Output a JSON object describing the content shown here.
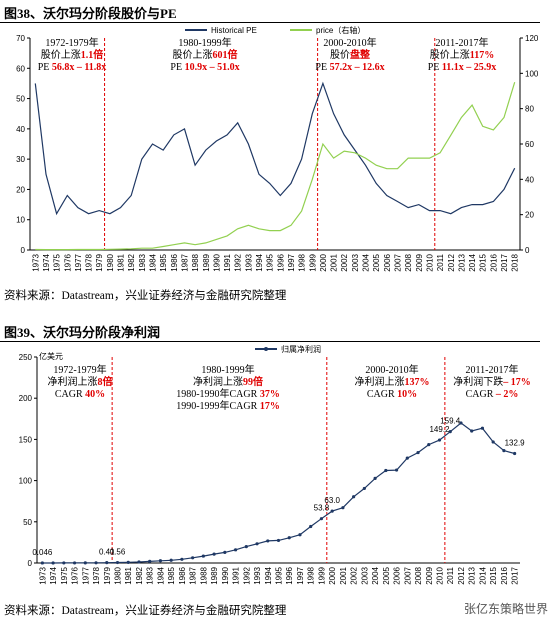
{
  "chart_data": [
    {
      "type": "line",
      "title": "图38、沃尔玛分阶段股价与PE",
      "categories": [
        "1973",
        "1974",
        "1975",
        "1976",
        "1977",
        "1978",
        "1979",
        "1980",
        "1981",
        "1982",
        "1983",
        "1984",
        "1985",
        "1986",
        "1987",
        "1988",
        "1989",
        "1990",
        "1991",
        "1992",
        "1993",
        "1994",
        "1995",
        "1996",
        "1997",
        "1998",
        "1999",
        "2000",
        "2001",
        "2002",
        "2003",
        "2004",
        "2005",
        "2006",
        "2007",
        "2008",
        "2009",
        "2010",
        "2011",
        "2012",
        "2013",
        "2014",
        "2015",
        "2016",
        "2017",
        "2018"
      ],
      "series": [
        {
          "name": "Historical PE",
          "color": "#1f3864",
          "values": [
            55,
            25,
            12,
            18,
            14,
            12,
            13,
            12,
            14,
            18,
            30,
            35,
            33,
            38,
            40,
            28,
            33,
            36,
            38,
            42,
            35,
            25,
            22,
            18,
            22,
            30,
            45,
            55,
            45,
            38,
            33,
            28,
            22,
            18,
            16,
            14,
            15,
            13,
            13,
            12,
            14,
            15,
            15,
            16,
            20,
            27
          ]
        },
        {
          "name": "price（右轴）",
          "color": "#92d050",
          "axis": "y2",
          "values": [
            0.3,
            0.2,
            0.2,
            0.2,
            0.3,
            0.3,
            0.3,
            0.4,
            0.5,
            0.7,
            1,
            1,
            2,
            3,
            4,
            3,
            4,
            6,
            8,
            12,
            14,
            12,
            11,
            11,
            14,
            22,
            40,
            60,
            52,
            56,
            55,
            52,
            48,
            46,
            46,
            52,
            52,
            52,
            55,
            65,
            75,
            82,
            70,
            68,
            75,
            95
          ]
        }
      ],
      "ylim": [
        0,
        70
      ],
      "yticks": [
        0,
        10,
        20,
        30,
        40,
        50,
        60,
        70
      ],
      "y2lim": [
        0,
        120
      ],
      "y2ticks": [
        0,
        20,
        40,
        60,
        80,
        100,
        120
      ],
      "period_lines": [
        "1980",
        "2000",
        "2011"
      ],
      "annotations": [
        [
          [
            "1972-1979年"
          ],
          [
            "股价上涨",
            "1.1倍"
          ],
          [
            "PE ",
            "56.8x – 11.8x"
          ]
        ],
        [
          [
            "1980-1999年"
          ],
          [
            "股价上涨",
            "601倍"
          ],
          [
            "PE ",
            "10.9x – 51.0x"
          ]
        ],
        [
          [
            "2000-2010年"
          ],
          [
            "股价",
            "盘整"
          ],
          [
            "PE ",
            "57.2x – 12.6x"
          ]
        ],
        [
          [
            "2011-2017年"
          ],
          [
            "股价上涨",
            "117%"
          ],
          [
            "PE ",
            "11.1x – 25.9x"
          ]
        ]
      ]
    },
    {
      "type": "line",
      "title": "图39、沃尔玛分阶段净利润",
      "y_label": "亿美元",
      "categories": [
        "1973",
        "1974",
        "1975",
        "1976",
        "1977",
        "1978",
        "1979",
        "1980",
        "1981",
        "1982",
        "1983",
        "1984",
        "1985",
        "1986",
        "1987",
        "1988",
        "1989",
        "1990",
        "1991",
        "1992",
        "1993",
        "1994",
        "1995",
        "1996",
        "1997",
        "1998",
        "1999",
        "2000",
        "2001",
        "2002",
        "2003",
        "2004",
        "2005",
        "2006",
        "2007",
        "2008",
        "2009",
        "2010",
        "2011",
        "2012",
        "2013",
        "2014",
        "2015",
        "2016",
        "2017"
      ],
      "series": [
        {
          "name": "归属净利润",
          "color": "#1f3864",
          "marker": true,
          "values": [
            0.046,
            0.06,
            0.08,
            0.1,
            0.15,
            0.25,
            0.41,
            0.56,
            0.8,
            1.2,
            2,
            2.7,
            3.3,
            4.5,
            6.3,
            8.4,
            10.8,
            12.9,
            16,
            19.9,
            23.3,
            26.8,
            27.4,
            30.6,
            34.3,
            44.3,
            53.8,
            63.0,
            67.1,
            80.4,
            90.5,
            102.7,
            112.3,
            112.8,
            127.3,
            134,
            143.7,
            149.2,
            159.4,
            169.9,
            160.2,
            163.6,
            146.9,
            136.4,
            132.9
          ],
          "value_labels": [
            "0.046",
            null,
            null,
            null,
            null,
            null,
            "0.41",
            "0.56",
            null,
            null,
            null,
            null,
            null,
            null,
            null,
            null,
            null,
            null,
            null,
            null,
            null,
            null,
            null,
            null,
            null,
            null,
            "53.8",
            "63.0",
            null,
            null,
            null,
            null,
            null,
            null,
            null,
            null,
            null,
            "149.2",
            "159.4",
            null,
            null,
            null,
            null,
            null,
            "132.9"
          ]
        }
      ],
      "ylim": [
        0,
        250
      ],
      "yticks": [
        0,
        50,
        100,
        150,
        200,
        250
      ],
      "period_lines": [
        "1980",
        "2000",
        "2011"
      ],
      "annotations": [
        [
          [
            "1972-1979年"
          ],
          [
            "净利润上涨",
            "8倍"
          ],
          [
            "CAGR ",
            "40%"
          ]
        ],
        [
          [
            "1980-1999年"
          ],
          [
            "净利润上涨",
            "99倍"
          ],
          [
            "1980-1990年CAGR ",
            "37%"
          ],
          [
            "1990-1999年CAGR ",
            "17%"
          ]
        ],
        [
          [
            "2000-2010年"
          ],
          [
            "净利润上涨",
            "137%"
          ],
          [
            "CAGR ",
            "10%"
          ]
        ],
        [
          [
            "2011-2017年"
          ],
          [
            "净利润下跌",
            "– 17%"
          ],
          [
            "CAGR ",
            "– 2%"
          ]
        ]
      ]
    }
  ],
  "sources": [
    "资料来源：Datastream，兴业证券经济与金融研究院整理",
    "资料来源：Datastream，兴业证券经济与金融研究院整理"
  ],
  "watermark": "张亿东策略世界"
}
